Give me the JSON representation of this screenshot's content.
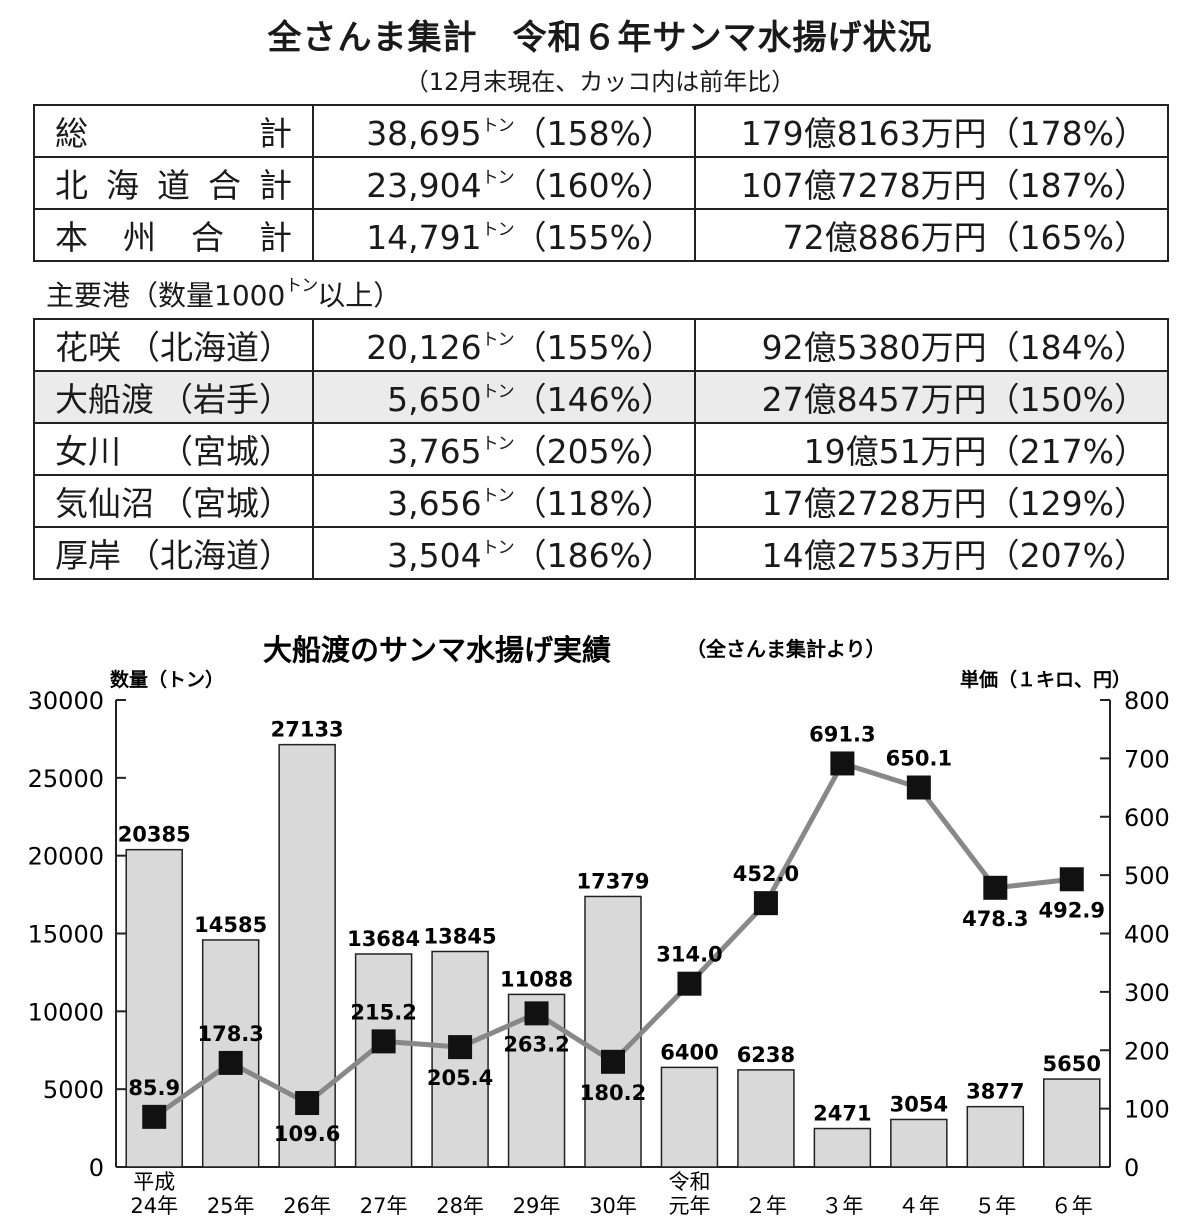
{
  "header": {
    "title": "全さんま集計　令和６年サンマ水揚げ状況",
    "subtitle": "（12月末現在、カッコ内は前年比）"
  },
  "summary_rows": [
    {
      "name": "総計",
      "qty": "38,695",
      "qty_pct": "（158%）",
      "amount": "179億8163万円（178%）"
    },
    {
      "name": "北海道合計",
      "qty": "23,904",
      "qty_pct": "（160%）",
      "amount": "107億7278万円（187%）"
    },
    {
      "name": "本州合計",
      "qty": "14,791",
      "qty_pct": "（155%）",
      "amount": "72億886万円（165%）"
    }
  ],
  "ports_label": {
    "prefix": "主要港（数量1000",
    "suffix": "以上）"
  },
  "ton_unit": "トン",
  "port_rows": [
    {
      "name": "花咲",
      "region": "（北海道）",
      "qty": "20,126",
      "qty_pct": "（155%）",
      "amount": "92億5380万円（184%）",
      "highlight": false
    },
    {
      "name": "大船渡",
      "region": "（岩手）",
      "qty": "5,650",
      "qty_pct": "（146%）",
      "amount": "27億8457万円（150%）",
      "highlight": true
    },
    {
      "name": "女川",
      "region": "（宮城）",
      "qty": "3,765",
      "qty_pct": "（205%）",
      "amount": "19億51万円（217%）",
      "highlight": false
    },
    {
      "name": "気仙沼",
      "region": "（宮城）",
      "qty": "3,656",
      "qty_pct": "（118%）",
      "amount": "17億2728万円（129%）",
      "highlight": false
    },
    {
      "name": "厚岸",
      "region": "（北海道）",
      "qty": "3,504",
      "qty_pct": "（186%）",
      "amount": "14億2753万円（207%）",
      "highlight": false
    }
  ],
  "chart_data": {
    "type": "bar",
    "title": "大船渡のサンマ水揚げ実績",
    "subtitle": "（全さんま集計より）",
    "ylabel_left": "数量（トン）",
    "ylabel_right": "単価（１キロ、円）",
    "categories": [
      "平成24年",
      "25年",
      "26年",
      "27年",
      "28年",
      "29年",
      "30年",
      "令和元年",
      "２年",
      "３年",
      "４年",
      "５年",
      "６年"
    ],
    "category_labels": [
      {
        "top": "平成",
        "bottom": "24年"
      },
      {
        "top": "",
        "bottom": "25年"
      },
      {
        "top": "",
        "bottom": "26年"
      },
      {
        "top": "",
        "bottom": "27年"
      },
      {
        "top": "",
        "bottom": "28年"
      },
      {
        "top": "",
        "bottom": "29年"
      },
      {
        "top": "",
        "bottom": "30年"
      },
      {
        "top": "令和",
        "bottom": "元年"
      },
      {
        "top": "",
        "bottom": "２年"
      },
      {
        "top": "",
        "bottom": "３年"
      },
      {
        "top": "",
        "bottom": "４年"
      },
      {
        "top": "",
        "bottom": "５年"
      },
      {
        "top": "",
        "bottom": "６年"
      }
    ],
    "series": [
      {
        "name": "数量",
        "type": "bar",
        "axis": "left",
        "color": "#d9d9d9",
        "values": [
          20385,
          14585,
          27133,
          13684,
          13845,
          11088,
          17379,
          6400,
          6238,
          2471,
          3054,
          3877,
          5650
        ]
      },
      {
        "name": "単価",
        "type": "line",
        "axis": "right",
        "color": "#888888",
        "values": [
          85.9,
          178.3,
          109.6,
          215.2,
          205.4,
          263.2,
          180.2,
          314.0,
          452.0,
          691.3,
          650.1,
          478.3,
          492.9
        ],
        "labels": [
          "85.9",
          "178.3",
          "109.6",
          "215.2",
          "205.4",
          "263.2",
          "180.2",
          "314.0",
          "452.0",
          "691.3",
          "650.1",
          "478.3",
          "492.9"
        ]
      }
    ],
    "ylim_left": [
      0,
      30000
    ],
    "ylim_right": [
      0,
      800
    ],
    "yticks_left": [
      0,
      5000,
      10000,
      15000,
      20000,
      25000,
      30000
    ],
    "yticks_right": [
      0,
      100,
      200,
      300,
      400,
      500,
      600,
      700,
      800
    ],
    "grid": false
  }
}
